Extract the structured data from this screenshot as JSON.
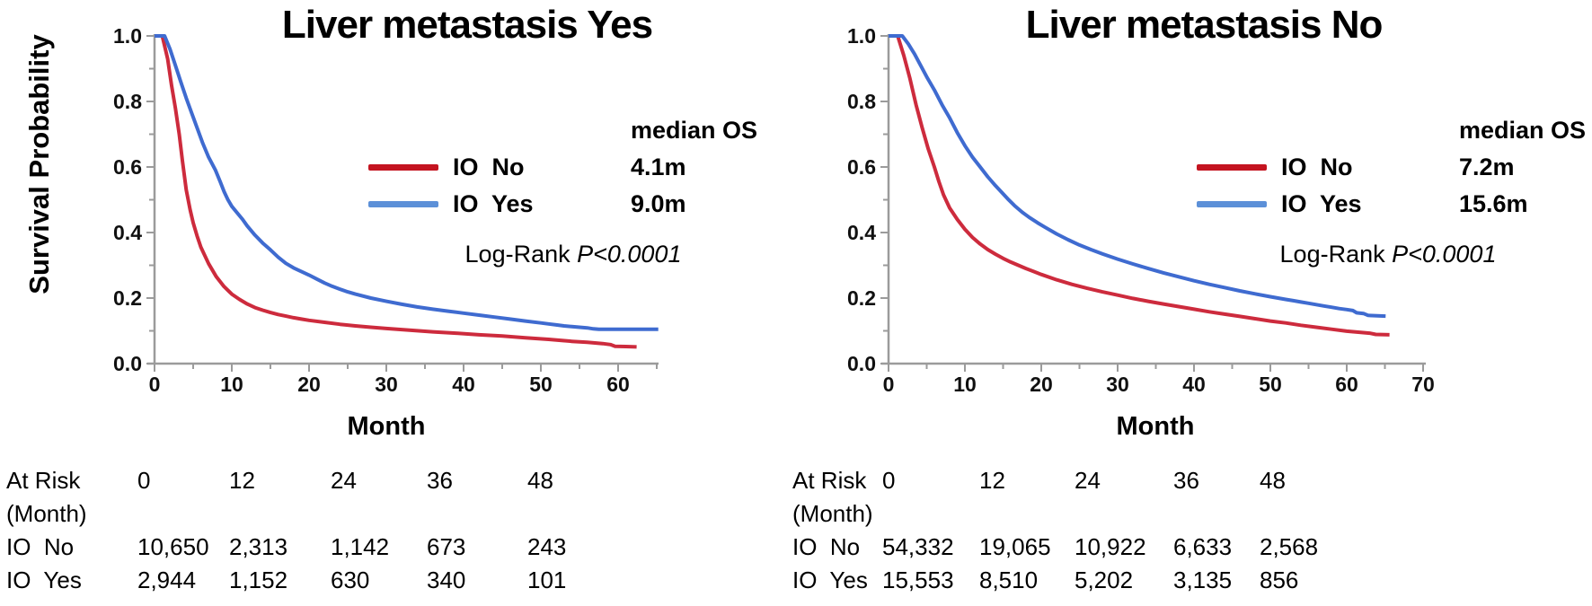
{
  "colors": {
    "axis": "#9b9b9b",
    "text": "#000000",
    "background": "#ffffff"
  },
  "chart_data": [
    {
      "type": "line",
      "subtype": "kaplan-meier-survival",
      "title": "Liver metastasis Yes",
      "xlabel": "Month",
      "ylabel": "Survival Probability",
      "xlim": [
        0,
        65
      ],
      "ylim": [
        0.0,
        1.0
      ],
      "x_ticks": [
        0,
        10,
        20,
        30,
        40,
        50,
        60
      ],
      "x_minor_ticks": [
        5,
        15,
        25,
        35,
        45,
        55,
        65
      ],
      "y_ticks": [
        "1.0",
        "0.8",
        "0.6",
        "0.4",
        "0.2",
        "0.0"
      ],
      "y_tick_values": [
        1.0,
        0.8,
        0.6,
        0.4,
        0.2,
        0.0
      ],
      "y_minor_ticks": [
        0.9,
        0.7,
        0.5,
        0.3,
        0.1
      ],
      "grid": "off",
      "legend": {
        "header": "median OS",
        "position": "right-inside",
        "entries": [
          {
            "label": "IO  No",
            "median_os": "4.1m",
            "color": "#c41420"
          },
          {
            "label": "IO  Yes",
            "median_os": "9.0m",
            "color": "#5c90d8"
          }
        ]
      },
      "annotation": {
        "prefix": "Log-Rank ",
        "value": "P<0.0001"
      },
      "series": [
        {
          "name": "IO No",
          "color": "#cd2b3d",
          "points": [
            [
              0,
              1
            ],
            [
              1,
              1
            ],
            [
              1.7,
              0.93
            ],
            [
              2.2,
              0.85
            ],
            [
              2.7,
              0.78
            ],
            [
              3.2,
              0.7
            ],
            [
              3.6,
              0.62
            ],
            [
              4.1,
              0.53
            ],
            [
              4.6,
              0.47
            ],
            [
              5,
              0.43
            ],
            [
              5.5,
              0.39
            ],
            [
              6,
              0.355
            ],
            [
              7,
              0.305
            ],
            [
              8,
              0.265
            ],
            [
              9,
              0.235
            ],
            [
              10,
              0.212
            ],
            [
              11,
              0.196
            ],
            [
              12,
              0.182
            ],
            [
              13,
              0.171
            ],
            [
              14,
              0.163
            ],
            [
              15,
              0.156
            ],
            [
              16,
              0.15
            ],
            [
              17,
              0.145
            ],
            [
              18,
              0.14
            ],
            [
              19,
              0.136
            ],
            [
              20,
              0.132
            ],
            [
              22,
              0.126
            ],
            [
              24,
              0.12
            ],
            [
              26,
              0.115
            ],
            [
              28,
              0.111
            ],
            [
              30,
              0.107
            ],
            [
              33,
              0.102
            ],
            [
              36,
              0.097
            ],
            [
              39,
              0.093
            ],
            [
              42,
              0.088
            ],
            [
              45,
              0.084
            ],
            [
              48,
              0.079
            ],
            [
              51,
              0.074
            ],
            [
              54,
              0.068
            ],
            [
              56,
              0.065
            ],
            [
              58,
              0.061
            ],
            [
              59,
              0.058
            ],
            [
              59.6,
              0.053
            ],
            [
              61,
              0.052
            ],
            [
              62.4,
              0.051
            ]
          ]
        },
        {
          "name": "IO Yes",
          "color": "#3f6bd0",
          "points": [
            [
              0,
              1
            ],
            [
              1.3,
              1
            ],
            [
              2,
              0.96
            ],
            [
              2.7,
              0.91
            ],
            [
              3.4,
              0.86
            ],
            [
              4.1,
              0.81
            ],
            [
              4.8,
              0.765
            ],
            [
              5.5,
              0.72
            ],
            [
              6.2,
              0.675
            ],
            [
              7,
              0.63
            ],
            [
              7.9,
              0.59
            ],
            [
              8.5,
              0.555
            ],
            [
              9,
              0.525
            ],
            [
              9.5,
              0.5
            ],
            [
              10,
              0.48
            ],
            [
              10.7,
              0.46
            ],
            [
              11.4,
              0.44
            ],
            [
              12,
              0.42
            ],
            [
              13,
              0.392
            ],
            [
              14,
              0.368
            ],
            [
              15,
              0.347
            ],
            [
              16,
              0.325
            ],
            [
              17,
              0.306
            ],
            [
              18,
              0.292
            ],
            [
              19,
              0.281
            ],
            [
              20,
              0.27
            ],
            [
              21,
              0.258
            ],
            [
              22,
              0.246
            ],
            [
              23,
              0.236
            ],
            [
              24,
              0.227
            ],
            [
              25,
              0.219
            ],
            [
              26,
              0.212
            ],
            [
              28,
              0.2
            ],
            [
              30,
              0.19
            ],
            [
              32,
              0.181
            ],
            [
              34,
              0.173
            ],
            [
              36,
              0.166
            ],
            [
              38,
              0.16
            ],
            [
              40,
              0.154
            ],
            [
              42,
              0.148
            ],
            [
              44,
              0.142
            ],
            [
              46,
              0.136
            ],
            [
              48,
              0.13
            ],
            [
              50,
              0.124
            ],
            [
              51,
              0.121
            ],
            [
              52,
              0.118
            ],
            [
              53,
              0.115
            ],
            [
              54,
              0.113
            ],
            [
              55,
              0.111
            ],
            [
              56,
              0.109
            ],
            [
              56.8,
              0.106
            ],
            [
              57.5,
              0.105
            ],
            [
              65.2,
              0.105
            ]
          ]
        }
      ],
      "at_risk_table": {
        "row_label_line1": "At Risk",
        "row_label_line2": "(Month)",
        "columns": [
          "0",
          "12",
          "24",
          "36",
          "48"
        ],
        "rows": [
          {
            "label": "IO  No",
            "values": [
              "10,650",
              "2,313",
              "1,142",
              "673",
              "243"
            ]
          },
          {
            "label": "IO  Yes",
            "values": [
              "2,944",
              "1,152",
              "630",
              "340",
              "101"
            ]
          }
        ]
      }
    },
    {
      "type": "line",
      "subtype": "kaplan-meier-survival",
      "title": "Liver metastasis No",
      "xlabel": "Month",
      "ylabel": "",
      "xlim": [
        0,
        70
      ],
      "ylim": [
        0.0,
        1.0
      ],
      "x_ticks": [
        0,
        10,
        20,
        30,
        40,
        50,
        60,
        70
      ],
      "x_minor_ticks": [
        5,
        15,
        25,
        35,
        45,
        55,
        65
      ],
      "y_ticks": [
        "1.0",
        "0.8",
        "0.6",
        "0.4",
        "0.2",
        "0.0"
      ],
      "y_tick_values": [
        1.0,
        0.8,
        0.6,
        0.4,
        0.2,
        0.0
      ],
      "y_minor_ticks": [
        0.9,
        0.7,
        0.5,
        0.3,
        0.1
      ],
      "grid": "off",
      "legend": {
        "header": "median OS",
        "position": "right-inside",
        "entries": [
          {
            "label": "IO  No",
            "median_os": "7.2m",
            "color": "#c41420"
          },
          {
            "label": "IO  Yes",
            "median_os": "15.6m",
            "color": "#5c90d8"
          }
        ]
      },
      "annotation": {
        "prefix": "Log-Rank ",
        "value": "P<0.0001"
      },
      "series": [
        {
          "name": "IO No",
          "color": "#cd2b3d",
          "points": [
            [
              0,
              1
            ],
            [
              1.2,
              1
            ],
            [
              2,
              0.94
            ],
            [
              2.8,
              0.87
            ],
            [
              3.6,
              0.79
            ],
            [
              4.4,
              0.72
            ],
            [
              5.2,
              0.655
            ],
            [
              6,
              0.6
            ],
            [
              6.6,
              0.555
            ],
            [
              7.2,
              0.515
            ],
            [
              8,
              0.475
            ],
            [
              9,
              0.44
            ],
            [
              10,
              0.41
            ],
            [
              11,
              0.385
            ],
            [
              12,
              0.365
            ],
            [
              13,
              0.348
            ],
            [
              14,
              0.334
            ],
            [
              15,
              0.321
            ],
            [
              16,
              0.31
            ],
            [
              17,
              0.3
            ],
            [
              18,
              0.29
            ],
            [
              19,
              0.281
            ],
            [
              20,
              0.272
            ],
            [
              22,
              0.256
            ],
            [
              24,
              0.242
            ],
            [
              26,
              0.23
            ],
            [
              28,
              0.219
            ],
            [
              30,
              0.209
            ],
            [
              32,
              0.199
            ],
            [
              34,
              0.19
            ],
            [
              36,
              0.182
            ],
            [
              38,
              0.174
            ],
            [
              40,
              0.166
            ],
            [
              42,
              0.158
            ],
            [
              44,
              0.151
            ],
            [
              46,
              0.144
            ],
            [
              48,
              0.137
            ],
            [
              50,
              0.13
            ],
            [
              52,
              0.124
            ],
            [
              54,
              0.117
            ],
            [
              56,
              0.111
            ],
            [
              58,
              0.105
            ],
            [
              60,
              0.099
            ],
            [
              61.5,
              0.096
            ],
            [
              63,
              0.093
            ],
            [
              63.8,
              0.089
            ],
            [
              65.6,
              0.088
            ]
          ]
        },
        {
          "name": "IO Yes",
          "color": "#3f6bd0",
          "points": [
            [
              0,
              1
            ],
            [
              1.8,
              1
            ],
            [
              2.6,
              0.975
            ],
            [
              3.4,
              0.945
            ],
            [
              4.2,
              0.91
            ],
            [
              5,
              0.875
            ],
            [
              6,
              0.835
            ],
            [
              7,
              0.79
            ],
            [
              8,
              0.75
            ],
            [
              9,
              0.705
            ],
            [
              10,
              0.665
            ],
            [
              11,
              0.63
            ],
            [
              12,
              0.6
            ],
            [
              13,
              0.57
            ],
            [
              14,
              0.543
            ],
            [
              15,
              0.518
            ],
            [
              15.6,
              0.503
            ],
            [
              16.5,
              0.482
            ],
            [
              17.5,
              0.462
            ],
            [
              18.5,
              0.445
            ],
            [
              19.5,
              0.43
            ],
            [
              20.5,
              0.416
            ],
            [
              22,
              0.396
            ],
            [
              23.5,
              0.378
            ],
            [
              25,
              0.362
            ],
            [
              26.5,
              0.348
            ],
            [
              28,
              0.335
            ],
            [
              30,
              0.319
            ],
            [
              32,
              0.304
            ],
            [
              34,
              0.29
            ],
            [
              36,
              0.277
            ],
            [
              38,
              0.265
            ],
            [
              40,
              0.253
            ],
            [
              42,
              0.242
            ],
            [
              44,
              0.232
            ],
            [
              46,
              0.222
            ],
            [
              48,
              0.213
            ],
            [
              50,
              0.204
            ],
            [
              52,
              0.196
            ],
            [
              53,
              0.192
            ],
            [
              54,
              0.188
            ],
            [
              55,
              0.184
            ],
            [
              56,
              0.18
            ],
            [
              57,
              0.176
            ],
            [
              58,
              0.172
            ],
            [
              59,
              0.168
            ],
            [
              60,
              0.165
            ],
            [
              60.8,
              0.162
            ],
            [
              61.3,
              0.155
            ],
            [
              62.2,
              0.153
            ],
            [
              62.8,
              0.147
            ],
            [
              64,
              0.146
            ],
            [
              65.1,
              0.145
            ]
          ]
        }
      ],
      "at_risk_table": {
        "row_label_line1": "At Risk",
        "row_label_line2": "(Month)",
        "columns": [
          "0",
          "12",
          "24",
          "36",
          "48"
        ],
        "rows": [
          {
            "label": "IO  No",
            "values": [
              "54,332",
              "19,065",
              "10,922",
              "6,633",
              "2,568"
            ]
          },
          {
            "label": "IO  Yes",
            "values": [
              "15,553",
              "8,510",
              "5,202",
              "3,135",
              "856"
            ]
          }
        ]
      }
    }
  ]
}
